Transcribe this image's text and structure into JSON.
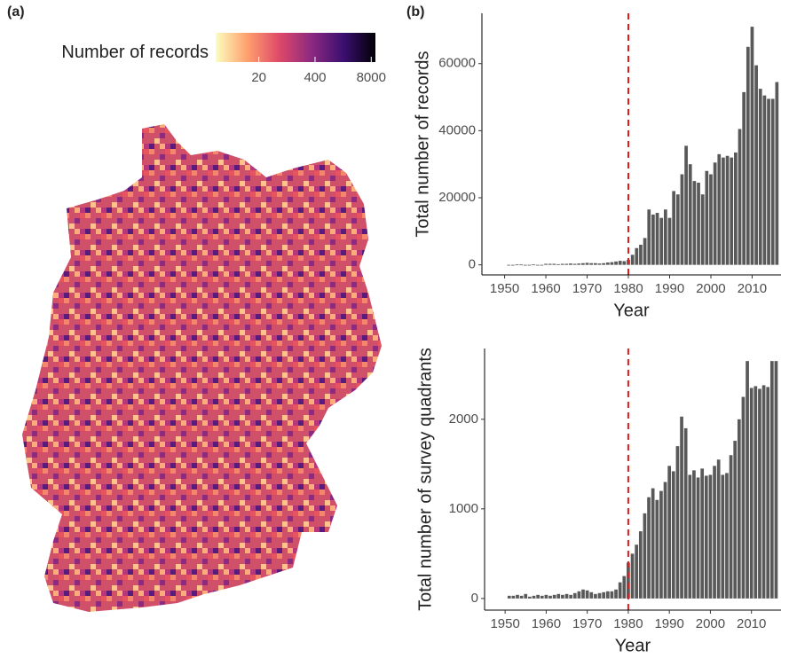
{
  "chart_data": [
    {
      "type": "map",
      "panel_label": "(a)",
      "legend_title": "Number of records",
      "log_scale": true,
      "clim": [
        2,
        10000
      ],
      "cticks": [
        20,
        400,
        8000
      ],
      "colors": [
        "#fcfdbf",
        "#fe9f6d",
        "#de4968",
        "#8c2981",
        "#3b0f70",
        "#000004"
      ]
    },
    {
      "type": "bar",
      "panel_label": "(b)",
      "ylabel": "Total number of records",
      "xlabel": "Year",
      "color": "#595959",
      "vline": 1980,
      "vline_color": "#e41a1c",
      "x": [
        1951,
        1952,
        1953,
        1954,
        1955,
        1956,
        1957,
        1958,
        1959,
        1960,
        1961,
        1962,
        1963,
        1964,
        1965,
        1966,
        1967,
        1968,
        1969,
        1970,
        1971,
        1972,
        1973,
        1974,
        1975,
        1976,
        1977,
        1978,
        1979,
        1980,
        1981,
        1982,
        1983,
        1984,
        1985,
        1986,
        1987,
        1988,
        1989,
        1990,
        1991,
        1992,
        1993,
        1994,
        1995,
        1996,
        1997,
        1998,
        1999,
        2000,
        2001,
        2002,
        2003,
        2004,
        2005,
        2006,
        2007,
        2008,
        2009,
        2010,
        2011,
        2012,
        2013,
        2014,
        2015,
        2016
      ],
      "values": [
        0,
        0,
        100,
        100,
        0,
        0,
        100,
        0,
        0,
        300,
        300,
        300,
        200,
        300,
        300,
        400,
        300,
        400,
        500,
        600,
        500,
        500,
        400,
        500,
        700,
        800,
        1000,
        1200,
        1100,
        1500,
        3000,
        5000,
        6000,
        8000,
        16500,
        15000,
        15500,
        14000,
        16500,
        14000,
        22000,
        21000,
        27000,
        35500,
        30000,
        25000,
        24500,
        21000,
        28000,
        27000,
        30500,
        33000,
        32000,
        32500,
        32000,
        33500,
        40500,
        51500,
        65000,
        71000,
        59500,
        52500,
        50500,
        49500,
        49500,
        54500
      ],
      "xlim": [
        1944.5,
        2017
      ],
      "xticks": [
        1950,
        1960,
        1970,
        1980,
        1990,
        2000,
        2010
      ],
      "ylim": [
        -3000,
        75000
      ],
      "yticks": [
        0,
        20000,
        40000,
        60000
      ]
    },
    {
      "type": "bar",
      "ylabel": "Total number of survey quadrants",
      "xlabel": "Year",
      "color": "#595959",
      "vline": 1980,
      "vline_color": "#e41a1c",
      "x": [
        1951,
        1952,
        1953,
        1954,
        1955,
        1956,
        1957,
        1958,
        1959,
        1960,
        1961,
        1962,
        1963,
        1964,
        1965,
        1966,
        1967,
        1968,
        1969,
        1970,
        1971,
        1972,
        1973,
        1974,
        1975,
        1976,
        1977,
        1978,
        1979,
        1980,
        1981,
        1982,
        1983,
        1984,
        1985,
        1986,
        1987,
        1988,
        1989,
        1990,
        1991,
        1992,
        1993,
        1994,
        1995,
        1996,
        1997,
        1998,
        1999,
        2000,
        2001,
        2002,
        2003,
        2004,
        2005,
        2006,
        2007,
        2008,
        2009,
        2010,
        2011,
        2012,
        2013,
        2014,
        2015,
        2016
      ],
      "values": [
        30,
        30,
        40,
        30,
        50,
        20,
        30,
        40,
        30,
        40,
        30,
        40,
        50,
        40,
        50,
        40,
        60,
        80,
        100,
        90,
        70,
        50,
        60,
        70,
        80,
        80,
        100,
        180,
        250,
        400,
        500,
        600,
        750,
        950,
        1130,
        1230,
        1100,
        1200,
        1300,
        1480,
        1420,
        1700,
        2030,
        1900,
        1380,
        1430,
        1350,
        1450,
        1370,
        1380,
        1480,
        1550,
        1380,
        1400,
        1600,
        1760,
        2000,
        2250,
        2650,
        2350,
        2370,
        2340,
        2380,
        2360,
        2650,
        2650
      ],
      "xlim": [
        1945,
        2017.2
      ],
      "xticks": [
        1950,
        1960,
        1970,
        1980,
        1990,
        2000,
        2010
      ],
      "ylim": [
        -130,
        2790
      ],
      "yticks": [
        0,
        1000,
        2000
      ]
    }
  ]
}
